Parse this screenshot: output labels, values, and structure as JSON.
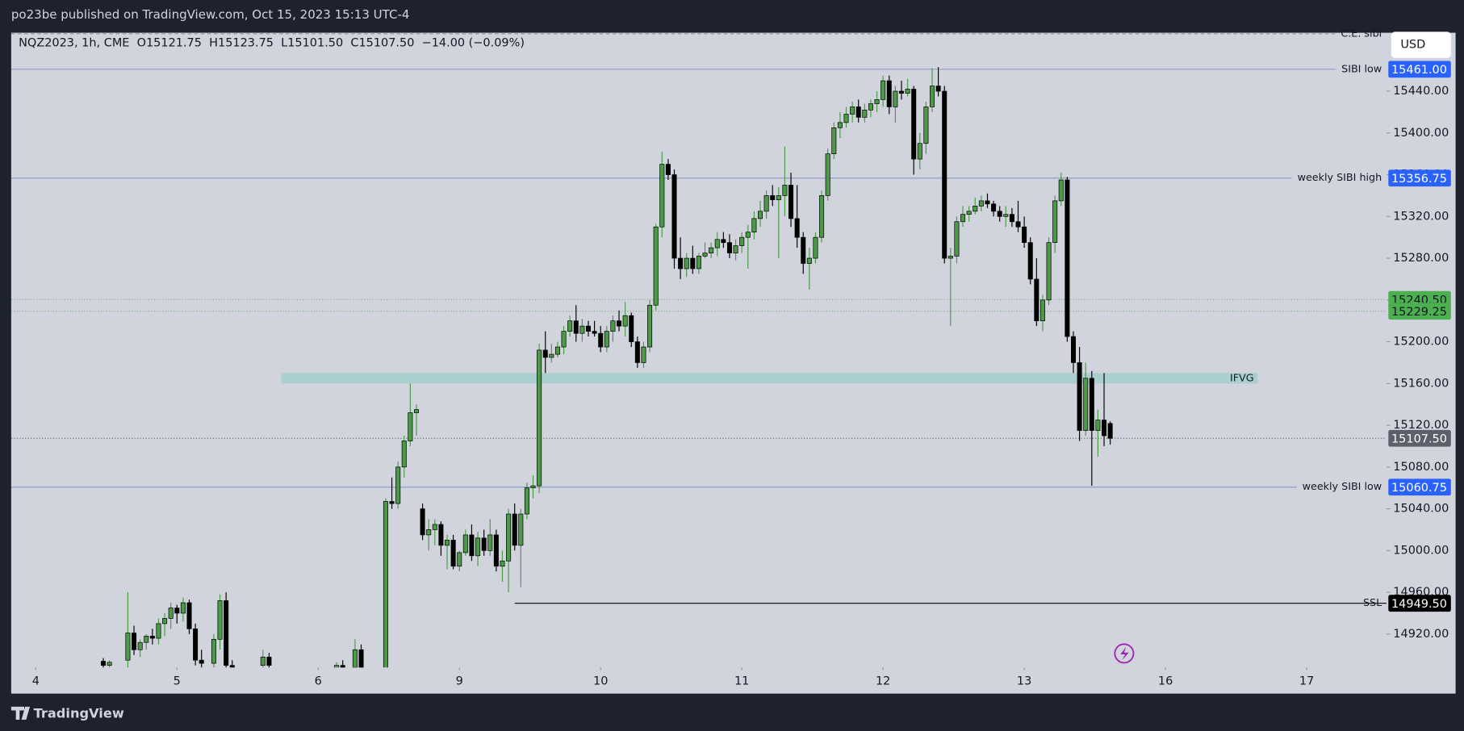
{
  "header": {
    "text": "po23be published on TradingView.com, Oct 15, 2023 15:13 UTC-4"
  },
  "footer": {
    "brand": "TradingView"
  },
  "chart_data": {
    "type": "candlestick",
    "legend_text": "NQZ2023, 1h, CME  O15121.75  H15123.75  L15101.50  C15107.50  −14.00 (−0.09%)",
    "currency": "USD",
    "x": [
      11,
      12,
      15,
      16,
      17,
      18,
      19,
      20,
      21,
      22,
      23,
      24,
      25,
      26,
      27,
      29,
      30,
      31,
      32,
      37,
      38,
      49,
      50,
      52,
      53,
      57,
      58,
      59,
      60,
      61,
      62,
      63,
      64,
      65,
      66,
      67,
      68,
      69,
      70,
      71,
      72,
      73,
      74,
      75,
      76,
      77,
      78,
      79,
      80,
      81,
      82,
      83,
      84,
      85,
      86,
      87,
      88,
      89,
      90,
      91,
      92,
      93,
      94,
      95,
      96,
      97,
      98,
      99,
      100,
      101,
      102,
      103,
      104,
      105,
      106,
      107,
      108,
      109,
      110,
      111,
      112,
      113,
      114,
      115,
      116,
      117,
      118,
      119,
      120,
      121,
      122,
      123,
      124,
      125,
      126,
      127,
      128,
      129,
      130,
      131,
      132,
      133,
      134,
      135,
      136,
      137,
      138,
      139,
      140,
      141,
      142,
      143,
      144,
      145,
      146,
      147,
      148,
      149,
      150,
      151,
      152,
      153,
      154,
      155,
      156,
      157,
      158,
      159,
      160,
      161,
      162,
      163,
      164,
      165,
      166,
      167,
      168,
      169,
      170,
      171,
      172,
      173,
      174,
      175
    ],
    "open": [
      14894,
      14890,
      14895,
      14921,
      14905,
      14912,
      14918,
      14916,
      14930,
      14935,
      14945,
      14940,
      14950,
      14925,
      14895,
      14892,
      14915,
      14952,
      14890,
      14890,
      14898,
      14885,
      14890,
      14888,
      14905,
      14880,
      15047,
      15045,
      15080,
      15105,
      15132,
      15040,
      15015,
      15020,
      15025,
      15005,
      15010,
      14985,
      14998,
      15015,
      14995,
      15012,
      15000,
      15015,
      14985,
      14990,
      15035,
      15005,
      15035,
      15060,
      15062,
      15192,
      15185,
      15188,
      15195,
      15210,
      15220,
      15208,
      15215,
      15210,
      15208,
      15195,
      15210,
      15220,
      15215,
      15225,
      15200,
      15180,
      15195,
      15235,
      15310,
      15370,
      15360,
      15280,
      15270,
      15280,
      15270,
      15282,
      15285,
      15290,
      15298,
      15295,
      15285,
      15292,
      15300,
      15305,
      15318,
      15325,
      15340,
      15336,
      15340,
      15350,
      15318,
      15300,
      15275,
      15280,
      15300,
      15340,
      15380,
      15405,
      15410,
      15418,
      15425,
      15415,
      15422,
      15428,
      15432,
      15450,
      15425,
      15440,
      15438,
      15442,
      15375,
      15390,
      15425,
      15445,
      15440,
      15280,
      15282,
      15315,
      15322,
      15325,
      15330,
      15335,
      15332,
      15325,
      15320,
      15322,
      15315,
      15310,
      15295,
      15260,
      15220,
      15240,
      15295,
      15335,
      15355,
      15205,
      15180,
      15115,
      15165,
      15115,
      15125,
      15121.75
    ],
    "high": [
      14897,
      14895,
      14960,
      14928,
      14915,
      14920,
      14925,
      14935,
      14940,
      14950,
      14948,
      14955,
      14953,
      14930,
      14905,
      14920,
      14958,
      14960,
      14895,
      14905,
      14902,
      14893,
      14895,
      14915,
      14910,
      15050,
      15070,
      15085,
      15110,
      15160,
      15140,
      15045,
      15030,
      15030,
      15028,
      15015,
      15015,
      15000,
      15020,
      15025,
      15018,
      15020,
      15030,
      15020,
      15000,
      15040,
      15045,
      15040,
      15065,
      15072,
      15198,
      15210,
      15198,
      15200,
      15215,
      15225,
      15235,
      15222,
      15220,
      15220,
      15215,
      15215,
      15225,
      15230,
      15238,
      15228,
      15205,
      15200,
      15240,
      15313,
      15382,
      15375,
      15365,
      15300,
      15285,
      15292,
      15285,
      15295,
      15295,
      15305,
      15305,
      15303,
      15298,
      15305,
      15312,
      15325,
      15335,
      15345,
      15350,
      15348,
      15387,
      15362,
      15350,
      15305,
      15290,
      15305,
      15345,
      15385,
      15410,
      15420,
      15425,
      15430,
      15432,
      15428,
      15432,
      15440,
      15455,
      15455,
      15445,
      15450,
      15452,
      15445,
      15400,
      15430,
      15462,
      15463,
      15445,
      15290,
      15320,
      15330,
      15330,
      15338,
      15340,
      15342,
      15335,
      15330,
      15330,
      15328,
      15335,
      15320,
      15300,
      15280,
      15245,
      15300,
      15340,
      15362,
      15358,
      15210,
      15195,
      15180,
      15172,
      15135,
      15170,
      15123.75
    ],
    "low": [
      14885,
      14884,
      14880,
      14900,
      14898,
      14905,
      14910,
      14910,
      14918,
      14925,
      14930,
      14932,
      14920,
      14890,
      14885,
      14885,
      14905,
      14885,
      14880,
      14880,
      14885,
      14880,
      14882,
      14880,
      14882,
      14870,
      15040,
      15040,
      15070,
      15100,
      15110,
      15010,
      15000,
      15005,
      14995,
      14982,
      14982,
      14980,
      14995,
      14990,
      14985,
      14995,
      14995,
      14980,
      14970,
      14960,
      15000,
      14965,
      15030,
      15050,
      15055,
      15170,
      15180,
      15185,
      15188,
      15205,
      15200,
      15200,
      15205,
      15205,
      15190,
      15190,
      15200,
      15210,
      15205,
      15195,
      15175,
      15175,
      15190,
      15230,
      15300,
      15355,
      15270,
      15260,
      15262,
      15265,
      15265,
      15280,
      15280,
      15282,
      15290,
      15280,
      15278,
      15285,
      15270,
      15298,
      15310,
      15318,
      15330,
      15280,
      15320,
      15310,
      15290,
      15265,
      15250,
      15275,
      15295,
      15335,
      15375,
      15395,
      15405,
      15410,
      15410,
      15410,
      15415,
      15420,
      15425,
      15418,
      15410,
      15432,
      15435,
      15360,
      15365,
      15380,
      15420,
      15435,
      15275,
      15215,
      15275,
      15310,
      15315,
      15322,
      15325,
      15328,
      15320,
      15315,
      15310,
      15310,
      15305,
      15290,
      15255,
      15215,
      15210,
      15235,
      15285,
      15330,
      15200,
      15170,
      15105,
      15110,
      15062,
      15090,
      15100,
      15101.5
    ],
    "close": [
      14890,
      14893,
      14921,
      14905,
      14912,
      14918,
      14916,
      14930,
      14935,
      14945,
      14940,
      14950,
      14925,
      14895,
      14892,
      14915,
      14952,
      14890,
      14885,
      14898,
      14890,
      14890,
      14886,
      14905,
      14888,
      15047,
      15045,
      15080,
      15105,
      15132,
      15135,
      15015,
      15020,
      15025,
      15005,
      15010,
      14985,
      14998,
      15015,
      14995,
      15012,
      15000,
      15015,
      14985,
      14990,
      15035,
      15005,
      15035,
      15060,
      15062,
      15192,
      15185,
      15188,
      15195,
      15210,
      15220,
      15208,
      15215,
      15210,
      15208,
      15195,
      15210,
      15220,
      15215,
      15225,
      15200,
      15180,
      15195,
      15235,
      15310,
      15370,
      15360,
      15280,
      15270,
      15280,
      15270,
      15282,
      15285,
      15290,
      15298,
      15295,
      15285,
      15292,
      15300,
      15305,
      15318,
      15325,
      15340,
      15336,
      15340,
      15350,
      15318,
      15300,
      15275,
      15280,
      15300,
      15340,
      15380,
      15405,
      15410,
      15418,
      15425,
      15415,
      15422,
      15428,
      15432,
      15450,
      15425,
      15440,
      15438,
      15442,
      15375,
      15390,
      15425,
      15445,
      15440,
      15280,
      15282,
      15315,
      15322,
      15325,
      15330,
      15335,
      15332,
      15325,
      15320,
      15322,
      15315,
      15310,
      15295,
      15260,
      15220,
      15240,
      15295,
      15335,
      15355,
      15205,
      15180,
      15115,
      15165,
      15115,
      15125,
      15110,
      15107.5
    ],
    "up_color": "#4a9a48",
    "down_color": "#000000",
    "xlim": [
      -4,
      220
    ],
    "xticks": [
      {
        "value": 0,
        "label": "4"
      },
      {
        "value": 23,
        "label": "5"
      },
      {
        "value": 46,
        "label": "6"
      },
      {
        "value": 69,
        "label": "9"
      },
      {
        "value": 92,
        "label": "10"
      },
      {
        "value": 115,
        "label": "11"
      },
      {
        "value": 138,
        "label": "12"
      },
      {
        "value": 161,
        "label": "13"
      },
      {
        "value": 184,
        "label": "16"
      },
      {
        "value": 207,
        "label": "17"
      }
    ],
    "ylim": [
      14888,
      15496
    ],
    "yticks": [
      {
        "value": 14920,
        "label": "14920.00"
      },
      {
        "value": 14960,
        "label": "14960.00"
      },
      {
        "value": 15000,
        "label": "15000.00"
      },
      {
        "value": 15040,
        "label": "15040.00"
      },
      {
        "value": 15080,
        "label": "15080.00"
      },
      {
        "value": 15120,
        "label": "15120.00"
      },
      {
        "value": 15160,
        "label": "15160.00"
      },
      {
        "value": 15200,
        "label": "15200.00"
      },
      {
        "value": 15240,
        "label": "15240.00"
      },
      {
        "value": 15280,
        "label": "15280.00"
      },
      {
        "value": 15320,
        "label": "15320.00"
      },
      {
        "value": 15360,
        "label": "15360.00"
      },
      {
        "value": 15400,
        "label": "15400.00"
      },
      {
        "value": 15440,
        "label": "15440.00"
      }
    ],
    "levels": [
      {
        "name": "C.E. sibi",
        "value": 15495,
        "style": "dashed",
        "color": "#9598a1"
      },
      {
        "name": "SIBI low",
        "value": 15461,
        "value_label": "15461.00",
        "style": "solid",
        "color": "#8f9cc9",
        "tag_color": "#2962ff"
      },
      {
        "name": "weekly SIBI high",
        "value": 15356.75,
        "value_label": "15356.75",
        "style": "solid",
        "color": "#8f9cc9",
        "tag_color": "#2962ff"
      },
      {
        "value": 15240.5,
        "value_label": "15240.50",
        "style": "dotted",
        "color": "#7fb07f",
        "tag_color": "#4caf50"
      },
      {
        "value": 15229.25,
        "value_label": "15229.25",
        "style": "dotted",
        "color": "#7fb07f",
        "tag_color": "#4caf50"
      },
      {
        "value": 15107.5,
        "value_label": "15107.50",
        "style": "dotted",
        "color": "#6a6d78",
        "tag_color": "#5d606b"
      },
      {
        "name": "weekly SIBI low",
        "value": 15060.75,
        "value_label": "15060.75",
        "style": "solid",
        "color": "#8f9cc9",
        "tag_color": "#2962ff"
      },
      {
        "name": "SSL",
        "value": 14949.5,
        "value_label": "14949.50",
        "style": "solid",
        "color": "#000000",
        "tag_color": "#000000",
        "start": 78
      }
    ],
    "zones": [
      {
        "name": "IFVG",
        "from": 15160,
        "to": 15170,
        "x0": 40,
        "x1": 199,
        "color": "#a9cfcf"
      }
    ]
  }
}
